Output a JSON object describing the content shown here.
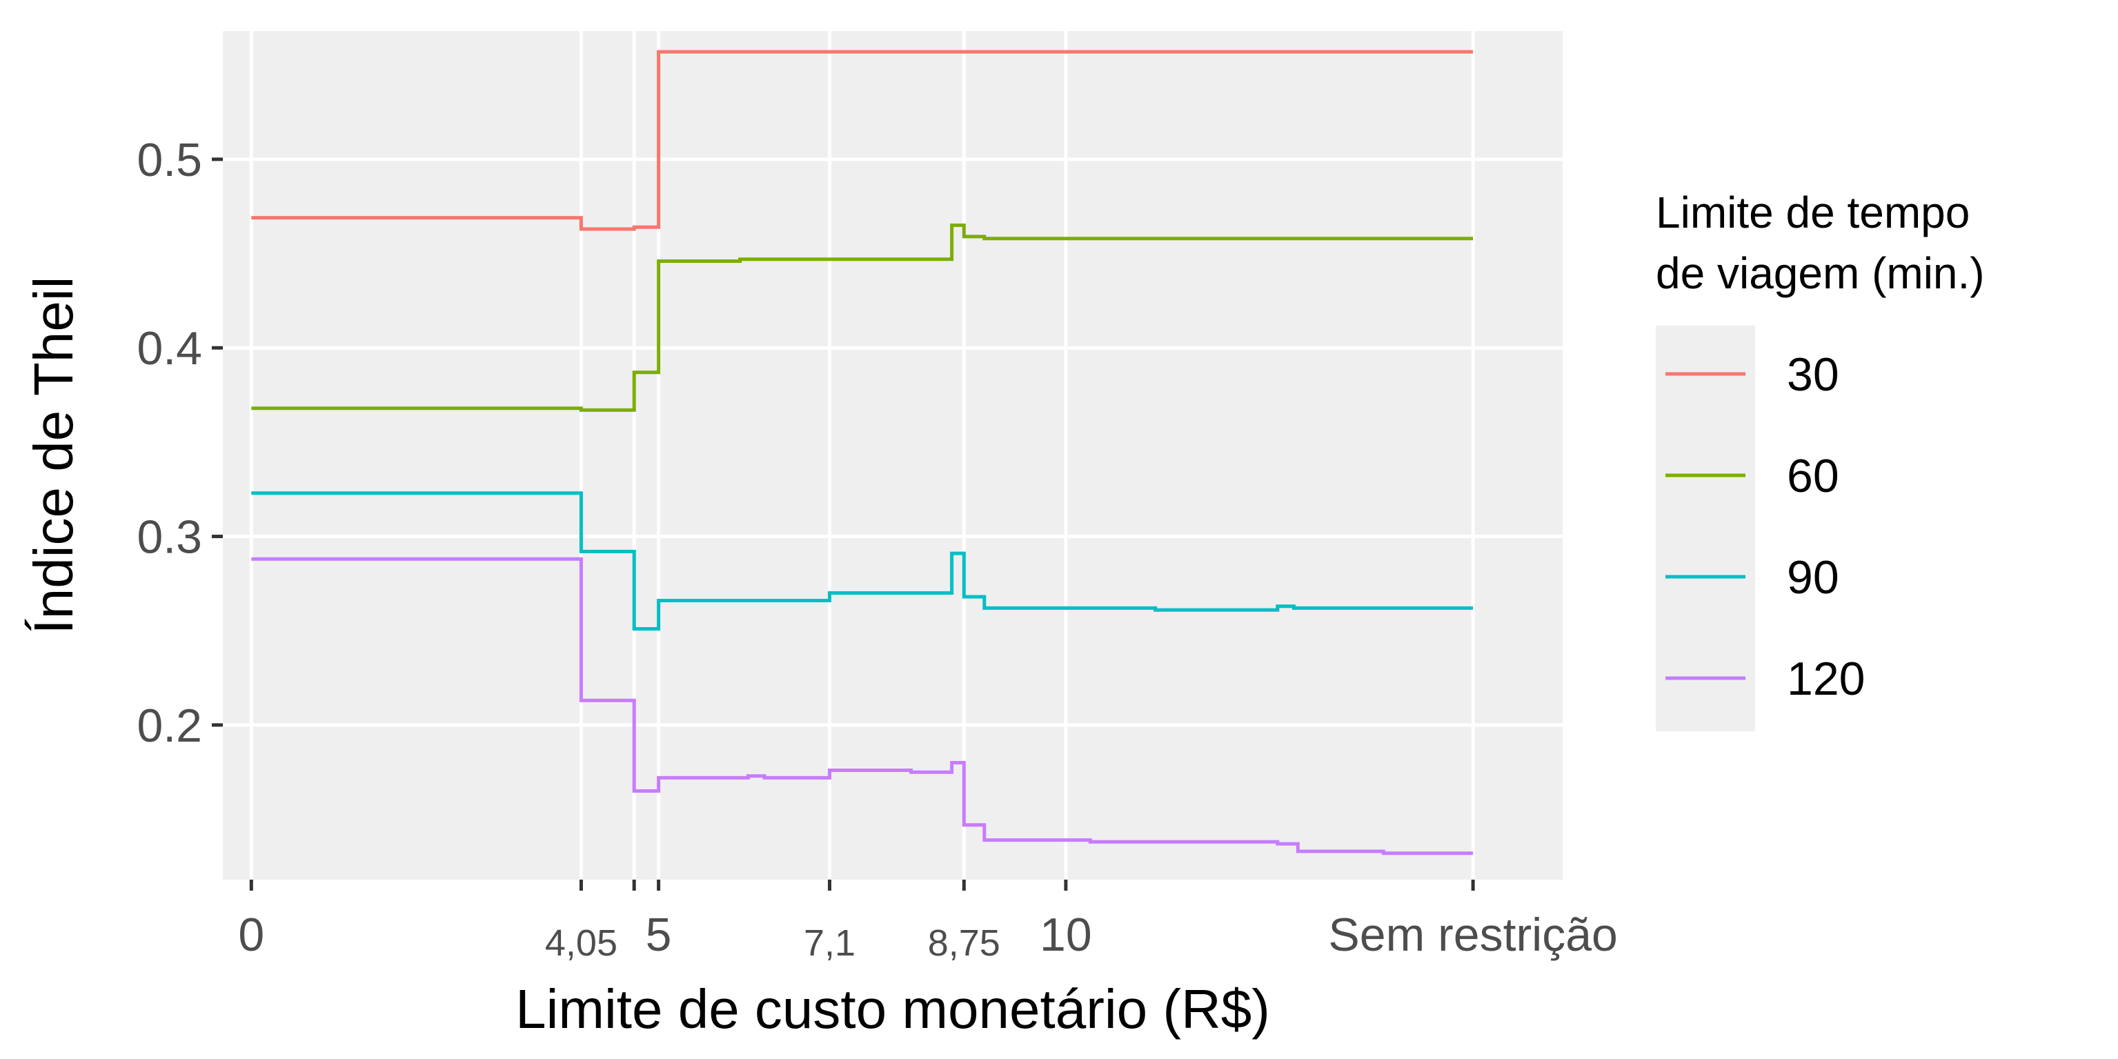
{
  "chart_data": {
    "type": "line",
    "step": true,
    "xlabel": "Limite de custo monetário (R$)",
    "ylabel": "Índice de Theil",
    "xlim": [
      -0.35,
      16.1
    ],
    "ylim": [
      0.118,
      0.568
    ],
    "x_ticks": [
      {
        "value": 0,
        "label": "0",
        "size": "large"
      },
      {
        "value": 4.05,
        "label": "4,05",
        "size": "small"
      },
      {
        "value": 4.7,
        "label": "",
        "size": "none"
      },
      {
        "value": 5,
        "label": "5",
        "size": "large"
      },
      {
        "value": 7.1,
        "label": "7,1",
        "size": "small"
      },
      {
        "value": 8.75,
        "label": "8,75",
        "size": "small"
      },
      {
        "value": 10,
        "label": "10",
        "size": "large"
      },
      {
        "value": 15,
        "label": "Sem restrição",
        "size": "large"
      }
    ],
    "y_ticks": [
      {
        "value": 0.2,
        "label": "0.2"
      },
      {
        "value": 0.3,
        "label": "0.3"
      },
      {
        "value": 0.4,
        "label": "0.4"
      },
      {
        "value": 0.5,
        "label": "0.5"
      }
    ],
    "grid": true,
    "legend": {
      "title_lines": [
        "Limite de tempo",
        "de viagem (min.)"
      ],
      "position": "right"
    },
    "series": [
      {
        "name": "30",
        "color": "#F8766D",
        "points": [
          [
            0,
            0.469
          ],
          [
            4.05,
            0.463
          ],
          [
            4.7,
            0.464
          ],
          [
            5,
            0.557
          ],
          [
            15,
            0.557
          ]
        ]
      },
      {
        "name": "60",
        "color": "#7CAE00",
        "points": [
          [
            0,
            0.368
          ],
          [
            4.05,
            0.367
          ],
          [
            4.7,
            0.387
          ],
          [
            5,
            0.446
          ],
          [
            6,
            0.447
          ],
          [
            8.6,
            0.465
          ],
          [
            8.75,
            0.459
          ],
          [
            9,
            0.458
          ],
          [
            12.7,
            0.458
          ],
          [
            15,
            0.458
          ]
        ]
      },
      {
        "name": "90",
        "color": "#00BFC4",
        "points": [
          [
            0,
            0.323
          ],
          [
            4.05,
            0.292
          ],
          [
            4.7,
            0.251
          ],
          [
            5,
            0.266
          ],
          [
            7.1,
            0.27
          ],
          [
            8.6,
            0.291
          ],
          [
            8.75,
            0.268
          ],
          [
            9,
            0.262
          ],
          [
            11.1,
            0.261
          ],
          [
            12.6,
            0.263
          ],
          [
            12.8,
            0.262
          ],
          [
            15,
            0.262
          ]
        ]
      },
      {
        "name": "120",
        "color": "#C77CFF",
        "points": [
          [
            0,
            0.288
          ],
          [
            4.05,
            0.213
          ],
          [
            4.7,
            0.165
          ],
          [
            5,
            0.172
          ],
          [
            6.1,
            0.173
          ],
          [
            6.3,
            0.172
          ],
          [
            7.1,
            0.176
          ],
          [
            8.1,
            0.175
          ],
          [
            8.6,
            0.18
          ],
          [
            8.75,
            0.147
          ],
          [
            9,
            0.139
          ],
          [
            10.3,
            0.138
          ],
          [
            12.6,
            0.137
          ],
          [
            12.85,
            0.133
          ],
          [
            13.9,
            0.132
          ],
          [
            15,
            0.132
          ]
        ]
      }
    ]
  }
}
